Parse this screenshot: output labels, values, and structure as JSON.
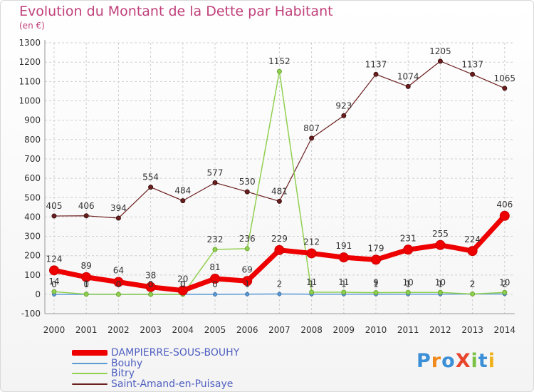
{
  "header": {
    "title": "Evolution du Montant de la Dette par Habitant",
    "unit": "(en €)"
  },
  "logo": {
    "text": "ProXiti"
  },
  "chart_data": {
    "type": "line",
    "title": "Evolution du Montant de la Dette par Habitant",
    "ylabel": "(en €)",
    "xlabel": "",
    "x": [
      "2000",
      "2001",
      "2002",
      "2003",
      "2004",
      "2005",
      "2006",
      "2007",
      "2008",
      "2009",
      "2010",
      "2011",
      "2012",
      "2013",
      "2014"
    ],
    "ylim": [
      -100,
      1300
    ],
    "yticks": [
      -100,
      0,
      100,
      200,
      300,
      400,
      500,
      600,
      700,
      800,
      900,
      1000,
      1100,
      1200,
      1300
    ],
    "grid": "horizontal dashed",
    "legend_position": "bottom-left",
    "series": [
      {
        "name": "DAMPIERRE-SOUS-BOUHY",
        "color": "#ee0000",
        "values": [
          124,
          89,
          64,
          38,
          20,
          81,
          69,
          229,
          212,
          191,
          179,
          231,
          255,
          224,
          406
        ],
        "labels": [
          "124",
          "89",
          "64",
          "38",
          "20",
          "81",
          "69",
          "229",
          "212",
          "191",
          "179",
          "231",
          "255",
          "224",
          "406"
        ]
      },
      {
        "name": "Bouhy",
        "color": "#5b9bd5",
        "values": [
          0,
          0,
          0,
          0,
          0,
          0,
          1,
          2,
          1,
          1,
          1,
          1,
          1,
          2,
          2
        ],
        "labels": [
          "0",
          "0",
          "0",
          "0",
          "0",
          "0",
          "1",
          "2",
          "1",
          "1",
          "1",
          "1",
          "1",
          "2",
          "2"
        ]
      },
      {
        "name": "Bitry",
        "color": "#92d050",
        "values": [
          14,
          1,
          0,
          0,
          0,
          232,
          236,
          1152,
          11,
          11,
          9,
          10,
          10,
          2,
          10
        ],
        "labels": [
          "14",
          "1",
          "0",
          "0",
          "0",
          "232",
          "236",
          "1152",
          "11",
          "11",
          "9",
          "10",
          "10",
          "2",
          "10"
        ]
      },
      {
        "name": "Saint-Amand-en-Puisaye",
        "color": "#6b1f1f",
        "values": [
          405,
          406,
          394,
          554,
          484,
          577,
          530,
          481,
          807,
          923,
          1137,
          1074,
          1205,
          1137,
          1065
        ],
        "labels": [
          "405",
          "406",
          "394",
          "554",
          "484",
          "577",
          "530",
          "481",
          "807",
          "923",
          "1137",
          "1074",
          "1205",
          "1137",
          "1065"
        ]
      }
    ]
  }
}
